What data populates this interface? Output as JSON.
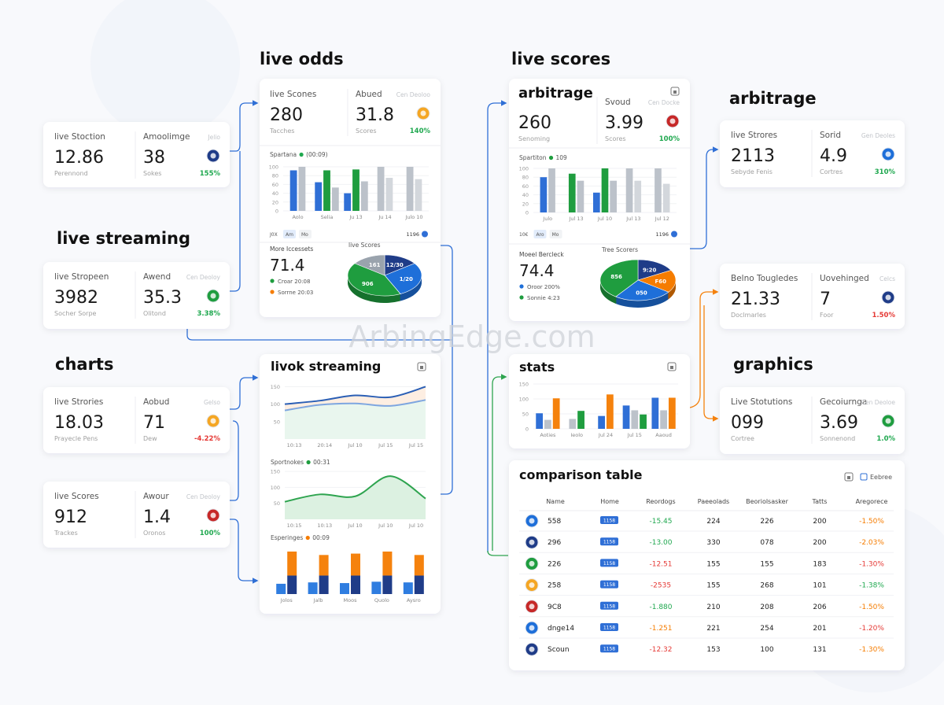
{
  "watermark": "ArbingEdge.com",
  "headings": [
    "live odds",
    "live scores",
    "live streaming",
    "charts",
    "arbitrage",
    "graphics"
  ],
  "stat_cards": [
    {
      "label_1": "live Stoction",
      "value_1": "12.86",
      "sub_1": "Perennond",
      "label_2": "Amoolimge",
      "value_2": "38",
      "sub_2": "Sokes",
      "tag": "Jelio",
      "change": "155%",
      "change_color": "#1fa84f"
    },
    {
      "label_1": "live Stropeen",
      "value_1": "3982",
      "sub_1": "Socher Sorpe",
      "label_2": "Awend",
      "value_2": "35.3",
      "sub_2": "Olitond",
      "tag": "Cen Deoloy",
      "change": "3.38%",
      "change_color": "#1fa84f"
    },
    {
      "label_1": "live Strories",
      "value_1": "18.03",
      "sub_1": "Prayecle Pens",
      "label_2": "Aobud",
      "value_2": "71",
      "sub_2": "Dew",
      "tag": "Gelso",
      "change": "-4.22%",
      "change_color": "#e53935"
    },
    {
      "label_1": "live Scores",
      "value_1": "912",
      "sub_1": "Trackes",
      "label_2": "Awour",
      "value_2": "1.4",
      "sub_2": "Oronos",
      "tag": "Cen Deoloy",
      "change": "100%",
      "change_color": "#1fa84f"
    },
    {
      "label_1": "live Strores",
      "value_1": "2113",
      "sub_1": "Sebyde Fenis",
      "label_2": "Sorid",
      "value_2": "4.9",
      "sub_2": "Cortres",
      "tag": "Gen Deoles",
      "change": "310%",
      "change_color": "#1fa84f"
    },
    {
      "label_1": "Belno Tougledes",
      "value_1": "21.33",
      "sub_1": "Doclmarles",
      "label_2": "Uovehinged",
      "value_2": "7",
      "sub_2": "Foor",
      "tag": "Celcs",
      "change": "1.50%",
      "change_color": "#e53935"
    },
    {
      "label_1": "Live Stotutions",
      "value_1": "099",
      "sub_1": "Cortree",
      "label_2": "Gecoiurnga",
      "value_2": "3.69",
      "sub_2": "Sonnenond",
      "tag": "Cen Deoloe",
      "change": "1.0%",
      "change_color": "#1fa84f"
    }
  ],
  "live_odds_panel": {
    "stat": {
      "label_1": "live Scones",
      "value_1": "280",
      "sub_1": "Tacches",
      "label_2": "Abued",
      "value_2": "31.8",
      "sub_2": "Scores",
      "tag": "Cen Deoloo",
      "change": "140%",
      "change_color": "#1fa84f"
    },
    "bar_chart": {
      "title": "Spartana",
      "title_note": "(00:09)",
      "dot_color": "#1fa84f",
      "ylim": [
        0,
        100
      ],
      "yticks": [
        0,
        20,
        40,
        60,
        80,
        100
      ],
      "categories": [
        "Aolo",
        "Selia",
        "Ju 13",
        "Ju 14",
        "Julo 10"
      ],
      "series": [
        {
          "color": "#2f6fd6",
          "values": [
            92,
            65,
            40,
            null,
            null
          ]
        },
        {
          "color": "#1f9d3f",
          "values": [
            null,
            92,
            94,
            null,
            null
          ]
        },
        {
          "color": "#bcc2ca",
          "values": [
            100,
            53,
            67,
            100,
            100
          ]
        },
        {
          "color": "#d3d7dc",
          "values": [
            null,
            null,
            null,
            75,
            72
          ]
        }
      ]
    },
    "footer": {
      "tabs": [
        "J0X",
        "Am",
        "Mo"
      ],
      "count": "1196"
    },
    "summary": {
      "label": "More Iccessets",
      "value": "71.4",
      "legend": [
        {
          "text": "Croar 20:08",
          "color": "#1f9d3f"
        },
        {
          "text": "Sorrne 20:03",
          "color": "#f57c00"
        }
      ]
    },
    "pie": {
      "title": "live Scores",
      "values": [
        15,
        28,
        42,
        15
      ],
      "colors": [
        "#1f3c88",
        "#1e6fd9",
        "#1f9d3f",
        "#9aa3ad"
      ],
      "labels": [
        "12/30",
        "1/20",
        "906",
        "161"
      ]
    }
  },
  "live_scores_panel": {
    "title": "arbitrage",
    "stat": {
      "value_1": "260",
      "sub_1": "Senoming",
      "label_2": "Svoud",
      "value_2": "3.99",
      "sub_2": "Scores",
      "tag": "Cen Docke",
      "change": "100%",
      "change_color": "#1fa84f"
    },
    "bar_chart": {
      "title": "Spartiton",
      "title_note": "109",
      "dot_color": "#1f9d3f",
      "ylim": [
        0,
        100
      ],
      "yticks": [
        0,
        20,
        40,
        60,
        80,
        100
      ],
      "categories": [
        "Julo",
        "Jul 13",
        "Jul 10",
        "Jul 13",
        "Jul 12"
      ],
      "series": [
        {
          "color": "#2f6fd6",
          "values": [
            80,
            null,
            45,
            null,
            null
          ]
        },
        {
          "color": "#1f9d3f",
          "values": [
            null,
            88,
            100,
            null,
            null
          ]
        },
        {
          "color": "#bcc2ca",
          "values": [
            100,
            72,
            72,
            100,
            100
          ]
        },
        {
          "color": "#d3d7dc",
          "values": [
            null,
            null,
            null,
            72,
            65
          ]
        }
      ]
    },
    "footer": {
      "tabs": [
        "10€",
        "Aro",
        "Mo"
      ],
      "count": "1196"
    },
    "summary": {
      "label": "Moeel Bercleck",
      "value": "74.4",
      "legend": [
        {
          "text": "Oroor 200%",
          "color": "#1e6fd9"
        },
        {
          "text": "Sonnie 4:23",
          "color": "#1f9d3f"
        }
      ]
    },
    "pie": {
      "title": "Tree Scorers",
      "values": [
        17,
        18,
        25,
        40
      ],
      "colors": [
        "#1f3c88",
        "#f57c00",
        "#1e6fd9",
        "#1f9d3f"
      ],
      "labels": [
        "9:20",
        "F60",
        "050",
        "856"
      ]
    }
  },
  "streaming_panel": {
    "title": "livok streaming",
    "line_chart": {
      "ylim": [
        0,
        160
      ],
      "yticks": [
        50,
        100,
        150
      ],
      "categories": [
        "10:13",
        "20:14",
        "Jul 10",
        "Jul 15",
        "Jul 15"
      ],
      "series": [
        {
          "color": "#2b5fb5",
          "fill": "#fdeee2",
          "values": [
            100,
            110,
            125,
            120,
            150
          ]
        },
        {
          "color": "#7ea6e0",
          "fill": "#e9f6ee",
          "values": [
            82,
            98,
            102,
            95,
            112
          ]
        }
      ]
    },
    "area_chart": {
      "title": "Sportnokes",
      "title_note": "00:31",
      "dot_color": "#1f9d3f",
      "ylim": [
        0,
        160
      ],
      "yticks": [
        50,
        100,
        150
      ],
      "categories": [
        "10:15",
        "10:13",
        "Jul 10",
        "Jul 10",
        "Jul 10"
      ],
      "series": [
        {
          "color": "#2ea44f",
          "fill": "#dcf1e1",
          "values": [
            55,
            78,
            72,
            135,
            65
          ]
        }
      ]
    },
    "stacked_chart": {
      "title": "Esperinges",
      "title_note": "00:09",
      "dot_color": "#f57c00",
      "ylim": [
        0,
        70
      ],
      "categories": [
        "Jolos",
        "Jalb",
        "Moos",
        "Quolo",
        "Aysro"
      ],
      "series": [
        {
          "color": "#2f7de0",
          "values": [
            15,
            17,
            16,
            18,
            17
          ]
        },
        {
          "color": "#1f3c88",
          "values": [
            27,
            27,
            27,
            27,
            27
          ]
        },
        {
          "color": "#f5820d",
          "values": [
            35,
            30,
            32,
            35,
            30
          ],
          "stacked_on": 1
        }
      ]
    }
  },
  "stats_panel": {
    "title": "stats",
    "bar_chart": {
      "ylim": [
        0,
        150
      ],
      "yticks": [
        0,
        50,
        100,
        150
      ],
      "categories": [
        "Aoties",
        "Ieolo",
        "Jul 24",
        "Jul 15",
        "Aaoud"
      ],
      "series": [
        {
          "color": "#2f6fd6",
          "values": [
            52,
            null,
            43,
            78,
            104
          ]
        },
        {
          "color": "#bcc2ca",
          "values": [
            30,
            33,
            null,
            62,
            62
          ]
        },
        {
          "color": "#f5820d",
          "values": [
            102,
            null,
            115,
            null,
            104
          ]
        },
        {
          "color": "#1f9d3f",
          "values": [
            null,
            60,
            null,
            48,
            null
          ]
        }
      ]
    }
  },
  "table": {
    "title": "comparison table",
    "action": "Eebree",
    "columns": [
      "Name",
      "Home",
      "Reordogs",
      "Paeeolads",
      "Beoriolsasker",
      "Tatts",
      "Aregorece"
    ],
    "rows": [
      {
        "name": "558",
        "home": "1158",
        "odds": "-15.45",
        "odds_color": "#1fa84f",
        "p": "224",
        "b": "226",
        "t": "200",
        "change": "-1.50%",
        "change_color": "#f57c00"
      },
      {
        "name": "296",
        "home": "1158",
        "odds": "-13.00",
        "odds_color": "#1fa84f",
        "p": "330",
        "b": "078",
        "t": "200",
        "change": "-2.03%",
        "change_color": "#f57c00"
      },
      {
        "name": "226",
        "home": "1158",
        "odds": "-12.51",
        "odds_color": "#e53935",
        "p": "155",
        "b": "155",
        "t": "183",
        "change": "-1.30%",
        "change_color": "#e53935"
      },
      {
        "name": "258",
        "home": "1158",
        "odds": "-2535",
        "odds_color": "#e53935",
        "p": "155",
        "b": "268",
        "t": "101",
        "change": "-1.38%",
        "change_color": "#1fa84f"
      },
      {
        "name": "9C8",
        "home": "1158",
        "odds": "-1.880",
        "odds_color": "#1fa84f",
        "p": "210",
        "b": "208",
        "t": "206",
        "change": "-1.50%",
        "change_color": "#f57c00"
      },
      {
        "name": "dnge14",
        "home": "1158",
        "odds": "-1.251",
        "odds_color": "#f57c00",
        "p": "221",
        "b": "254",
        "t": "201",
        "change": "-1.20%",
        "change_color": "#e53935"
      },
      {
        "name": "Scoun",
        "home": "1158",
        "odds": "-12.32",
        "odds_color": "#e53935",
        "p": "153",
        "b": "100",
        "t": "131",
        "change": "-1.30%",
        "change_color": "#f57c00"
      }
    ]
  }
}
